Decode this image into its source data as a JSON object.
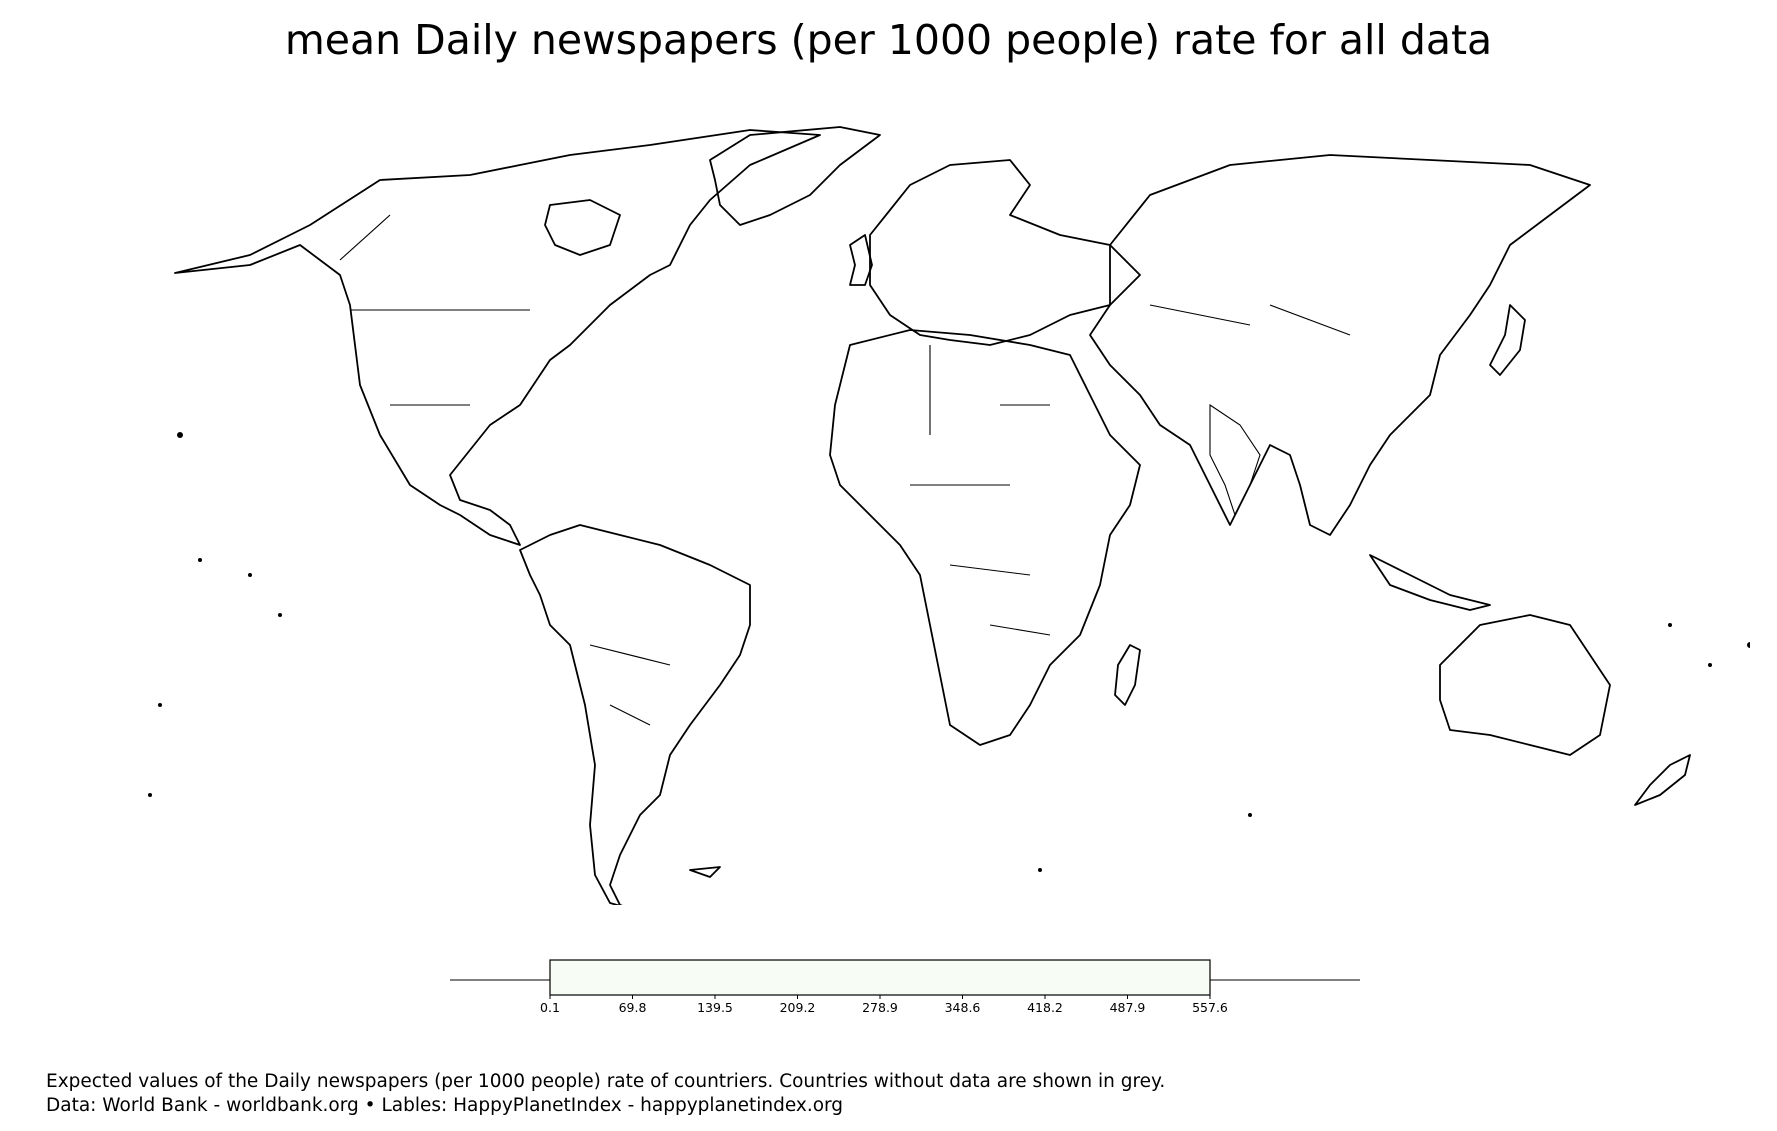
{
  "title": "mean Daily newspapers (per 1000 people) rate for all data",
  "colorbar": {
    "ticks": [
      "0.1",
      "69.8",
      "139.5",
      "209.2",
      "278.9",
      "348.6",
      "418.2",
      "487.9",
      "557.6"
    ],
    "min": 0.1,
    "max": 557.6,
    "fill_color": "#f7fcf5"
  },
  "footer": {
    "line1": "Expected values of the Daily newspapers (per 1000 people) rate of countriers. Countries without data are shown in grey.",
    "line2": "Data: World Bank - worldbank.org • Lables: HappyPlanetIndex - happyplanetindex.org"
  },
  "colors": {
    "outline": "#000000",
    "background": "#ffffff",
    "no_data": "#bbbbbb"
  }
}
